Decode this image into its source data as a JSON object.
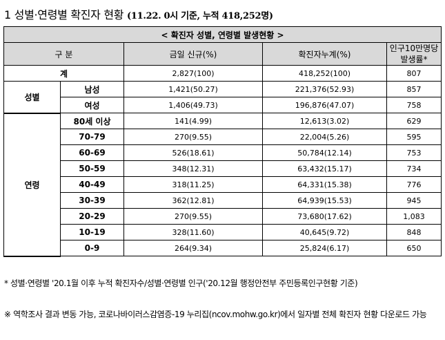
{
  "heading": {
    "main": "1 성별·연령별 확진자 현황",
    "sub": "(11.22. 0시 기준, 누적 418,252명)"
  },
  "table": {
    "caption": "< 확진자 성별, 연령별 발생현황 >",
    "headers": {
      "category": "구 분",
      "today_new": "금일 신규(%)",
      "cumulative": "확진자누계(%)",
      "per100k": "인구10만명당 발생률*"
    },
    "total": {
      "label": "계",
      "today_new": "2,827(100)",
      "cumulative": "418,252(100)",
      "per100k": "807"
    },
    "sex_group": "성별",
    "sex": [
      {
        "label": "남성",
        "today_new": "1,421(50.27)",
        "cumulative": "221,376(52.93)",
        "per100k": "857"
      },
      {
        "label": "여성",
        "today_new": "1,406(49.73)",
        "cumulative": "196,876(47.07)",
        "per100k": "758"
      }
    ],
    "age_group": "연령",
    "age": [
      {
        "label": "80세 이상",
        "today_new": "141(4.99)",
        "cumulative": "12,613(3.02)",
        "per100k": "629"
      },
      {
        "label": "70-79",
        "today_new": "270(9.55)",
        "cumulative": "22,004(5.26)",
        "per100k": "595"
      },
      {
        "label": "60-69",
        "today_new": "526(18.61)",
        "cumulative": "50,784(12.14)",
        "per100k": "753"
      },
      {
        "label": "50-59",
        "today_new": "348(12.31)",
        "cumulative": "63,432(15.17)",
        "per100k": "734"
      },
      {
        "label": "40-49",
        "today_new": "318(11.25)",
        "cumulative": "64,331(15.38)",
        "per100k": "776"
      },
      {
        "label": "30-39",
        "today_new": "362(12.81)",
        "cumulative": "64,939(15.53)",
        "per100k": "945"
      },
      {
        "label": "20-29",
        "today_new": "270(9.55)",
        "cumulative": "73,680(17.62)",
        "per100k": "1,083"
      },
      {
        "label": "10-19",
        "today_new": "328(11.60)",
        "cumulative": "40,645(9.72)",
        "per100k": "848"
      },
      {
        "label": "0-9",
        "today_new": "264(9.34)",
        "cumulative": "25,824(6.17)",
        "per100k": "650"
      }
    ]
  },
  "footnotes": [
    "* 성별·연령별 '20.1월 이후 누적 확진자수/성별·연령별 인구('20.12월 행정안전부 주민등록인구현황 기준)",
    "※ 역학조사 결과 변동 가능, 코로나바이러스감염증-19 누리집(ncov.mohw.go.kr)에서 일자별 전체 확진자 현황 다운로드 가능"
  ]
}
